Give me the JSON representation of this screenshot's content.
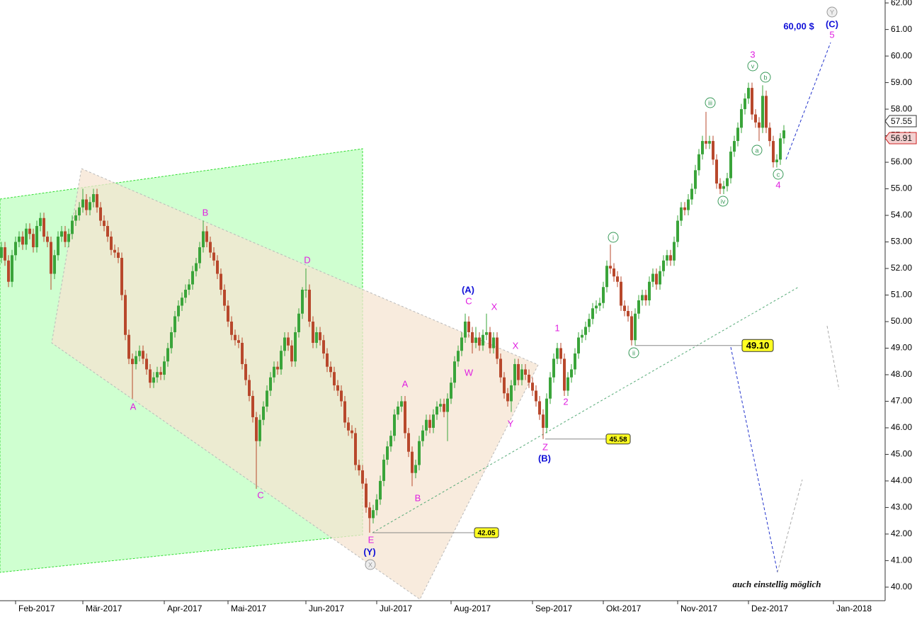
{
  "chart_data": {
    "type": "candlestick",
    "up_color": "#3aa43a",
    "down_color": "#b8482c",
    "xlim": [
      -0.4,
      249.6
    ],
    "ylim": [
      39.49,
      62.11
    ],
    "xticks": [
      {
        "value": 4,
        "label": "Feb-2017"
      },
      {
        "value": 23,
        "label": "Mär-2017"
      },
      {
        "value": 46,
        "label": "Apr-2017"
      },
      {
        "value": 64,
        "label": "Mai-2017"
      },
      {
        "value": 86,
        "label": "Jun-2017"
      },
      {
        "value": 106,
        "label": "Jul-2017"
      },
      {
        "value": 127,
        "label": "Aug-2017"
      },
      {
        "value": 150,
        "label": "Sep-2017"
      },
      {
        "value": 170,
        "label": "Okt-2017"
      },
      {
        "value": 191,
        "label": "Nov-2017"
      },
      {
        "value": 211,
        "label": "Dez-2017"
      },
      {
        "value": 235,
        "label": "Jan-2018"
      }
    ],
    "yticks": [
      {
        "value": 40,
        "label": "40.00"
      },
      {
        "value": 41,
        "label": "41.00"
      },
      {
        "value": 42,
        "label": "42.00"
      },
      {
        "value": 43,
        "label": "43.00"
      },
      {
        "value": 44,
        "label": "44.00"
      },
      {
        "value": 45,
        "label": "45.00"
      },
      {
        "value": 46,
        "label": "46.00"
      },
      {
        "value": 47,
        "label": "47.00"
      },
      {
        "value": 48,
        "label": "48.00"
      },
      {
        "value": 49,
        "label": "49.00"
      },
      {
        "value": 50,
        "label": "50.00"
      },
      {
        "value": 51,
        "label": "51.00"
      },
      {
        "value": 52,
        "label": "52.00"
      },
      {
        "value": 53,
        "label": "53.00"
      },
      {
        "value": 54,
        "label": "54.00"
      },
      {
        "value": 55,
        "label": "55.00"
      },
      {
        "value": 56,
        "label": "56.00"
      },
      {
        "value": 57,
        "label": "57.00"
      },
      {
        "value": 58,
        "label": "58.00"
      },
      {
        "value": 59,
        "label": "59.00"
      },
      {
        "value": 60,
        "label": "60.00"
      },
      {
        "value": 61,
        "label": "61.00"
      },
      {
        "value": 62,
        "label": "62.00"
      }
    ],
    "price_markers": [
      {
        "value": 57.55,
        "label": "57.55"
      },
      {
        "value": 56.91,
        "label": "56.91"
      }
    ],
    "levels": [
      {
        "value": 49.1,
        "label": "49.10"
      },
      {
        "value": 45.58,
        "label": "45.58"
      },
      {
        "value": 42.05,
        "label": "42.05"
      }
    ],
    "annotations": [
      "B",
      "A",
      "C",
      "D",
      "E",
      "(Y)",
      "A",
      "B",
      "(A)",
      "C",
      "X",
      "W",
      "X",
      "Y",
      "Z",
      "(B)",
      "1",
      "2",
      "3",
      "4",
      "5",
      "(C)",
      "60,00 $",
      "auch einstellig möglich"
    ],
    "circled": [
      "i",
      "ii",
      "iii",
      "iv",
      "v",
      "a",
      "b",
      "c",
      "Y",
      "X"
    ],
    "candles": [
      [
        52.4,
        53.0,
        52.2,
        52.8
      ],
      [
        52.8,
        53.0,
        52.1,
        52.3
      ],
      [
        52.3,
        52.5,
        51.3,
        51.5
      ],
      [
        51.5,
        52.7,
        51.3,
        52.5
      ],
      [
        52.5,
        53.2,
        52.3,
        53.0
      ],
      [
        53.0,
        53.4,
        52.8,
        53.2
      ],
      [
        53.2,
        53.4,
        52.7,
        52.9
      ],
      [
        52.9,
        53.7,
        52.7,
        53.5
      ],
      [
        53.5,
        53.7,
        53.1,
        53.3
      ],
      [
        53.3,
        53.5,
        52.6,
        52.8
      ],
      [
        52.8,
        53.8,
        52.6,
        53.6
      ],
      [
        53.6,
        54.1,
        53.4,
        53.9
      ],
      [
        53.9,
        54.1,
        53.0,
        53.2
      ],
      [
        53.2,
        53.4,
        52.8,
        53.0
      ],
      [
        53.0,
        53.2,
        51.2,
        51.8
      ],
      [
        51.8,
        52.7,
        51.6,
        52.5
      ],
      [
        52.5,
        53.4,
        52.3,
        53.2
      ],
      [
        53.2,
        53.6,
        53.0,
        53.4
      ],
      [
        53.4,
        53.6,
        52.8,
        53.0
      ],
      [
        53.0,
        53.5,
        52.8,
        53.3
      ],
      [
        53.3,
        54.0,
        53.1,
        53.8
      ],
      [
        53.8,
        54.2,
        53.6,
        54.0
      ],
      [
        54.0,
        54.5,
        53.8,
        54.3
      ],
      [
        54.3,
        55.0,
        54.1,
        54.6
      ],
      [
        54.6,
        54.8,
        54.0,
        54.2
      ],
      [
        54.2,
        54.7,
        54.0,
        54.5
      ],
      [
        54.5,
        55.0,
        54.3,
        54.8
      ],
      [
        54.8,
        55.0,
        54.1,
        54.3
      ],
      [
        54.3,
        54.5,
        53.6,
        53.8
      ],
      [
        53.8,
        54.0,
        53.4,
        53.6
      ],
      [
        53.6,
        53.8,
        53.0,
        53.2
      ],
      [
        53.2,
        53.4,
        52.5,
        52.7
      ],
      [
        52.7,
        52.9,
        52.4,
        52.6
      ],
      [
        52.6,
        52.8,
        52.2,
        52.4
      ],
      [
        52.4,
        52.6,
        50.8,
        51.0
      ],
      [
        51.0,
        51.2,
        49.3,
        49.5
      ],
      [
        49.5,
        49.7,
        48.4,
        48.6
      ],
      [
        48.6,
        48.8,
        47.1,
        48.4
      ],
      [
        48.4,
        48.9,
        48.2,
        48.7
      ],
      [
        48.7,
        49.1,
        48.5,
        48.9
      ],
      [
        48.9,
        49.1,
        48.4,
        48.6
      ],
      [
        48.6,
        48.8,
        48.0,
        48.2
      ],
      [
        48.2,
        48.4,
        47.5,
        47.7
      ],
      [
        47.7,
        48.1,
        47.5,
        47.9
      ],
      [
        47.9,
        48.3,
        47.7,
        48.1
      ],
      [
        48.1,
        48.3,
        47.8,
        48.0
      ],
      [
        48.0,
        48.7,
        47.8,
        48.5
      ],
      [
        48.5,
        49.2,
        48.3,
        49.0
      ],
      [
        49.0,
        49.8,
        48.8,
        49.6
      ],
      [
        49.6,
        50.4,
        49.4,
        50.2
      ],
      [
        50.2,
        50.8,
        50.0,
        50.6
      ],
      [
        50.6,
        51.1,
        50.4,
        50.9
      ],
      [
        50.9,
        51.4,
        50.7,
        51.2
      ],
      [
        51.2,
        51.6,
        51.0,
        51.4
      ],
      [
        51.4,
        52.1,
        51.2,
        51.9
      ],
      [
        51.9,
        52.4,
        51.7,
        52.2
      ],
      [
        52.2,
        53.0,
        52.0,
        52.8
      ],
      [
        52.8,
        53.8,
        52.6,
        53.4
      ],
      [
        53.4,
        53.6,
        52.8,
        53.0
      ],
      [
        53.0,
        53.2,
        52.4,
        52.6
      ],
      [
        52.6,
        52.8,
        52.1,
        52.3
      ],
      [
        52.3,
        52.5,
        51.6,
        51.8
      ],
      [
        51.8,
        52.0,
        51.0,
        51.2
      ],
      [
        51.2,
        51.4,
        50.4,
        50.6
      ],
      [
        50.6,
        50.8,
        49.8,
        50.0
      ],
      [
        50.0,
        50.2,
        49.3,
        49.5
      ],
      [
        49.5,
        49.7,
        49.1,
        49.3
      ],
      [
        49.3,
        49.5,
        49.0,
        49.2
      ],
      [
        49.2,
        49.4,
        48.2,
        48.4
      ],
      [
        48.4,
        48.6,
        47.6,
        47.8
      ],
      [
        47.8,
        48.0,
        47.0,
        47.2
      ],
      [
        47.2,
        47.4,
        46.2,
        46.4
      ],
      [
        46.4,
        46.6,
        43.7,
        45.5
      ],
      [
        45.5,
        46.5,
        45.3,
        46.3
      ],
      [
        46.3,
        47.0,
        46.1,
        46.8
      ],
      [
        46.8,
        47.6,
        46.6,
        47.4
      ],
      [
        47.4,
        48.1,
        47.2,
        47.9
      ],
      [
        47.9,
        48.5,
        47.7,
        48.3
      ],
      [
        48.3,
        48.5,
        48.0,
        48.2
      ],
      [
        48.2,
        49.1,
        48.0,
        48.9
      ],
      [
        48.9,
        49.6,
        48.7,
        49.4
      ],
      [
        49.4,
        49.6,
        48.9,
        49.1
      ],
      [
        49.1,
        49.3,
        48.3,
        48.5
      ],
      [
        48.5,
        49.8,
        48.3,
        49.6
      ],
      [
        49.6,
        50.5,
        49.4,
        50.3
      ],
      [
        50.3,
        51.3,
        50.1,
        51.2
      ],
      [
        51.2,
        52.0,
        50.9,
        51.2
      ],
      [
        51.2,
        51.4,
        49.8,
        50.0
      ],
      [
        50.0,
        50.2,
        49.0,
        49.2
      ],
      [
        49.2,
        49.8,
        49.0,
        49.6
      ],
      [
        49.6,
        49.8,
        49.1,
        49.3
      ],
      [
        49.3,
        49.5,
        48.6,
        48.8
      ],
      [
        48.8,
        49.0,
        48.1,
        48.3
      ],
      [
        48.3,
        48.5,
        47.9,
        48.1
      ],
      [
        48.1,
        48.3,
        47.4,
        47.6
      ],
      [
        47.6,
        47.8,
        47.2,
        47.4
      ],
      [
        47.4,
        47.6,
        46.8,
        47.0
      ],
      [
        47.0,
        47.2,
        46.0,
        46.2
      ],
      [
        46.2,
        46.4,
        45.7,
        45.9
      ],
      [
        45.9,
        46.1,
        45.6,
        45.8
      ],
      [
        45.8,
        46.0,
        44.4,
        44.6
      ],
      [
        44.6,
        44.8,
        44.2,
        44.4
      ],
      [
        44.4,
        44.6,
        43.7,
        43.9
      ],
      [
        43.9,
        44.1,
        42.8,
        43.0
      ],
      [
        43.0,
        43.2,
        42.05,
        42.6
      ],
      [
        42.6,
        43.1,
        42.4,
        42.9
      ],
      [
        42.9,
        43.5,
        42.7,
        43.3
      ],
      [
        43.3,
        44.2,
        43.1,
        44.0
      ],
      [
        44.0,
        45.0,
        43.8,
        44.8
      ],
      [
        44.8,
        45.5,
        44.6,
        45.3
      ],
      [
        45.3,
        45.9,
        45.1,
        45.7
      ],
      [
        45.7,
        46.7,
        45.5,
        46.5
      ],
      [
        46.5,
        47.0,
        46.3,
        46.8
      ],
      [
        46.8,
        47.2,
        46.6,
        47.0
      ],
      [
        47.0,
        47.2,
        45.6,
        45.8
      ],
      [
        45.8,
        46.0,
        44.9,
        45.1
      ],
      [
        45.1,
        45.3,
        43.8,
        44.3
      ],
      [
        44.3,
        44.8,
        44.1,
        44.6
      ],
      [
        44.6,
        45.7,
        44.4,
        45.5
      ],
      [
        45.5,
        46.1,
        45.3,
        45.9
      ],
      [
        45.9,
        46.5,
        45.7,
        46.3
      ],
      [
        46.3,
        46.5,
        45.8,
        46.0
      ],
      [
        46.0,
        46.7,
        45.8,
        46.5
      ],
      [
        46.5,
        47.0,
        46.3,
        46.8
      ],
      [
        46.8,
        47.1,
        46.6,
        46.9
      ],
      [
        46.9,
        47.1,
        46.4,
        46.6
      ],
      [
        46.6,
        47.3,
        45.5,
        47.1
      ],
      [
        47.1,
        47.9,
        46.9,
        47.7
      ],
      [
        47.7,
        48.7,
        47.5,
        48.5
      ],
      [
        48.5,
        49.1,
        48.3,
        48.9
      ],
      [
        48.9,
        49.6,
        48.7,
        49.4
      ],
      [
        49.4,
        50.3,
        49.2,
        50.0
      ],
      [
        50.0,
        50.2,
        49.4,
        49.6
      ],
      [
        49.6,
        49.8,
        48.8,
        49.2
      ],
      [
        49.2,
        49.8,
        49.0,
        49.4
      ],
      [
        49.4,
        49.6,
        48.9,
        49.1
      ],
      [
        49.1,
        49.7,
        48.9,
        49.5
      ],
      [
        49.5,
        50.3,
        49.3,
        49.6
      ],
      [
        49.6,
        49.8,
        48.8,
        49.0
      ],
      [
        49.0,
        49.6,
        48.8,
        49.4
      ],
      [
        49.4,
        49.6,
        48.4,
        48.6
      ],
      [
        48.6,
        48.8,
        47.7,
        47.9
      ],
      [
        47.9,
        48.1,
        47.1,
        47.3
      ],
      [
        47.3,
        47.5,
        46.8,
        47.0
      ],
      [
        47.0,
        47.8,
        46.6,
        47.6
      ],
      [
        47.6,
        48.6,
        47.4,
        48.4
      ],
      [
        48.4,
        48.6,
        47.6,
        47.8
      ],
      [
        47.8,
        48.4,
        47.6,
        48.2
      ],
      [
        48.2,
        48.4,
        47.8,
        48.0
      ],
      [
        48.0,
        48.2,
        47.5,
        47.7
      ],
      [
        47.7,
        47.9,
        47.2,
        47.4
      ],
      [
        47.4,
        47.6,
        46.8,
        47.0
      ],
      [
        47.0,
        47.2,
        46.3,
        46.5
      ],
      [
        46.5,
        46.7,
        45.58,
        46.0
      ],
      [
        46.0,
        47.3,
        45.8,
        47.1
      ],
      [
        47.1,
        48.1,
        46.9,
        47.9
      ],
      [
        47.9,
        48.8,
        47.7,
        48.6
      ],
      [
        48.6,
        49.2,
        48.4,
        49.0
      ],
      [
        49.0,
        49.2,
        48.4,
        48.6
      ],
      [
        48.6,
        48.8,
        47.2,
        47.4
      ],
      [
        47.4,
        48.1,
        47.2,
        47.9
      ],
      [
        47.9,
        48.4,
        47.7,
        48.2
      ],
      [
        48.2,
        49.0,
        48.0,
        48.8
      ],
      [
        48.8,
        49.6,
        48.6,
        49.4
      ],
      [
        49.4,
        49.7,
        49.2,
        49.5
      ],
      [
        49.5,
        50.0,
        49.3,
        49.8
      ],
      [
        49.8,
        50.3,
        49.6,
        50.1
      ],
      [
        50.1,
        50.7,
        49.9,
        50.5
      ],
      [
        50.5,
        50.8,
        50.3,
        50.6
      ],
      [
        50.6,
        50.9,
        50.4,
        50.7
      ],
      [
        50.7,
        51.5,
        50.5,
        51.3
      ],
      [
        51.3,
        52.3,
        51.1,
        52.1
      ],
      [
        52.1,
        52.9,
        51.8,
        52.0
      ],
      [
        52.0,
        52.2,
        51.5,
        51.7
      ],
      [
        51.7,
        51.9,
        51.3,
        51.5
      ],
      [
        51.5,
        51.7,
        50.4,
        50.6
      ],
      [
        50.6,
        50.8,
        50.2,
        50.4
      ],
      [
        50.4,
        50.6,
        50.0,
        50.2
      ],
      [
        50.2,
        50.4,
        49.1,
        49.3
      ],
      [
        49.3,
        50.5,
        49.1,
        50.3
      ],
      [
        50.3,
        51.0,
        50.1,
        50.8
      ],
      [
        50.8,
        51.2,
        50.6,
        51.0
      ],
      [
        51.0,
        51.2,
        50.6,
        50.8
      ],
      [
        50.8,
        51.7,
        50.6,
        51.5
      ],
      [
        51.5,
        52.0,
        51.3,
        51.8
      ],
      [
        51.8,
        52.0,
        51.2,
        51.4
      ],
      [
        51.4,
        52.1,
        51.2,
        51.9
      ],
      [
        51.9,
        52.5,
        51.7,
        52.3
      ],
      [
        52.3,
        52.7,
        52.1,
        52.5
      ],
      [
        52.5,
        52.7,
        52.1,
        52.3
      ],
      [
        52.3,
        53.2,
        52.1,
        53.0
      ],
      [
        53.0,
        54.0,
        52.8,
        53.8
      ],
      [
        53.8,
        54.5,
        53.6,
        54.3
      ],
      [
        54.3,
        54.5,
        54.0,
        54.2
      ],
      [
        54.2,
        54.8,
        54.0,
        54.6
      ],
      [
        54.6,
        55.2,
        54.4,
        55.0
      ],
      [
        55.0,
        55.9,
        54.8,
        55.7
      ],
      [
        55.7,
        56.5,
        55.5,
        56.3
      ],
      [
        56.3,
        57.0,
        56.1,
        56.8
      ],
      [
        56.8,
        57.9,
        56.5,
        56.7
      ],
      [
        56.7,
        57.0,
        56.5,
        56.8
      ],
      [
        56.8,
        57.0,
        55.9,
        56.1
      ],
      [
        56.1,
        56.3,
        55.0,
        55.2
      ],
      [
        55.2,
        55.4,
        54.8,
        55.0
      ],
      [
        55.0,
        55.3,
        54.8,
        55.1
      ],
      [
        55.1,
        55.6,
        54.9,
        55.4
      ],
      [
        55.4,
        56.6,
        55.2,
        56.4
      ],
      [
        56.4,
        57.0,
        56.2,
        56.8
      ],
      [
        56.8,
        57.5,
        56.6,
        57.3
      ],
      [
        57.3,
        58.2,
        57.1,
        58.0
      ],
      [
        58.0,
        58.6,
        57.8,
        58.4
      ],
      [
        58.4,
        59.0,
        58.2,
        58.8
      ],
      [
        58.8,
        59.0,
        57.6,
        57.8
      ],
      [
        57.8,
        58.0,
        57.3,
        57.5
      ],
      [
        57.5,
        57.7,
        56.8,
        57.3
      ],
      [
        57.3,
        58.9,
        57.1,
        58.5
      ],
      [
        58.5,
        58.7,
        57.1,
        57.3
      ],
      [
        57.3,
        57.5,
        56.6,
        56.8
      ],
      [
        56.8,
        57.0,
        55.8,
        56.0
      ],
      [
        56.0,
        56.3,
        55.8,
        56.1
      ],
      [
        56.1,
        57.1,
        55.9,
        56.9
      ],
      [
        56.9,
        57.4,
        56.7,
        57.2
      ]
    ]
  }
}
